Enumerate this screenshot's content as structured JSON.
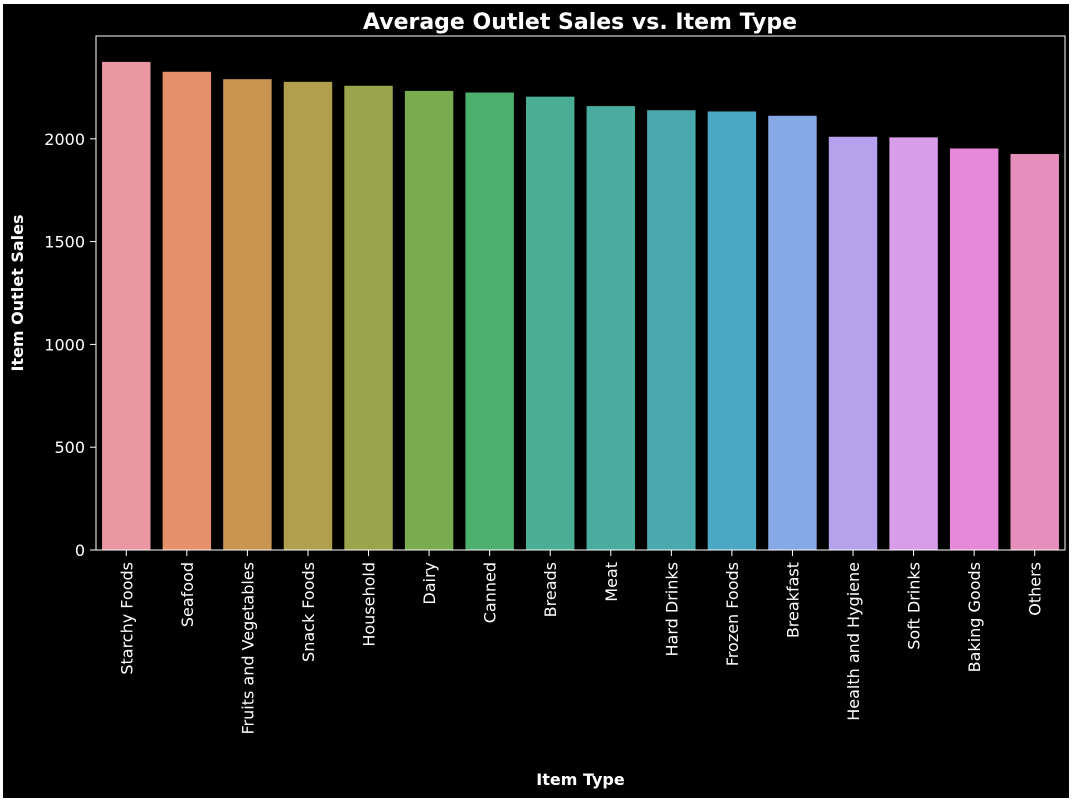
{
  "chart_data": {
    "type": "bar",
    "title": "Average Outlet Sales vs. Item Type",
    "xlabel": "Item Type",
    "ylabel": "Item Outlet Sales",
    "ylim": [
      0,
      2500
    ],
    "yticks": [
      0,
      500,
      1000,
      1500,
      2000
    ],
    "grid": false,
    "categories": [
      "Starchy Foods",
      "Seafood",
      "Fruits and Vegetables",
      "Snack Foods",
      "Household",
      "Dairy",
      "Canned",
      "Breads",
      "Meat",
      "Hard Drinks",
      "Frozen Foods",
      "Breakfast",
      "Health and Hygiene",
      "Soft Drinks",
      "Baking Goods",
      "Others"
    ],
    "values": [
      2374,
      2326,
      2290,
      2277,
      2258,
      2233,
      2225,
      2205,
      2159,
      2139,
      2133,
      2112,
      2010,
      2007,
      1953,
      1926
    ],
    "colors": [
      "#ea96a3",
      "#e4916c",
      "#c99651",
      "#b0a04e",
      "#9aa44c",
      "#79ab4f",
      "#4db06f",
      "#49ae93",
      "#4aab9f",
      "#4aa9ae",
      "#4ba8c4",
      "#86a9e5",
      "#b5a2ec",
      "#d89de8",
      "#e688d8",
      "#e68fbd"
    ],
    "background": "#000000",
    "text_color": "#ffffff"
  }
}
